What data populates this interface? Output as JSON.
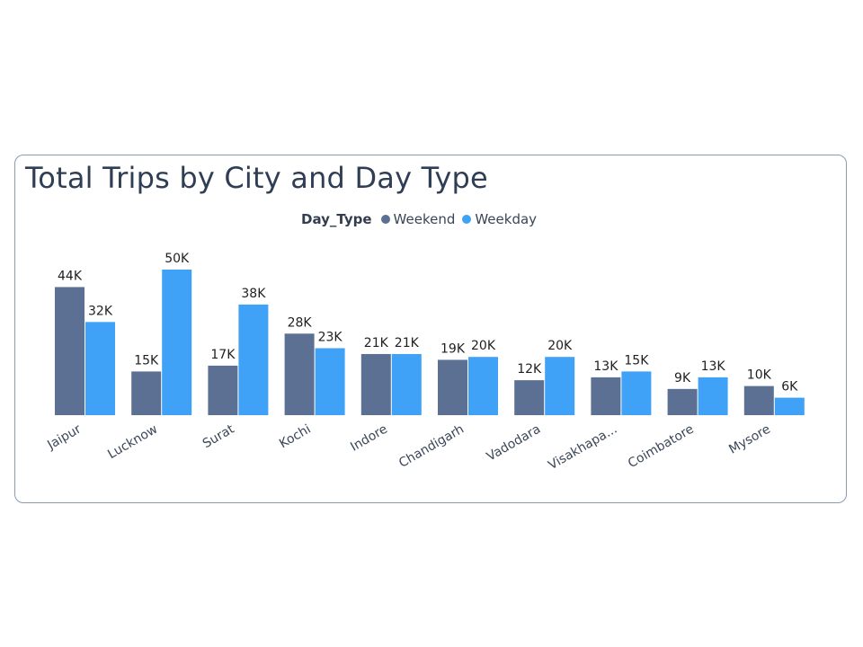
{
  "chart_data": {
    "type": "bar",
    "title": "Total Trips by City and Day Type",
    "legend_title": "Day_Type",
    "xlabel": "",
    "ylabel": "",
    "ylim": [
      0,
      52000
    ],
    "categories": [
      "Jaipur",
      "Lucknow",
      "Surat",
      "Kochi",
      "Indore",
      "Chandigarh",
      "Vadodara",
      "Visakhapa...",
      "Coimbatore",
      "Mysore"
    ],
    "series": [
      {
        "name": "Weekend",
        "color": "#5b7092",
        "values": [
          44000,
          15000,
          17000,
          28000,
          21000,
          19000,
          12000,
          13000,
          9000,
          10000
        ],
        "labels": [
          "44K",
          "15K",
          "17K",
          "28K",
          "21K",
          "19K",
          "12K",
          "13K",
          "9K",
          "10K"
        ]
      },
      {
        "name": "Weekday",
        "color": "#3fa2f7",
        "values": [
          32000,
          50000,
          38000,
          23000,
          21000,
          20000,
          20000,
          15000,
          13000,
          6000
        ],
        "labels": [
          "32K",
          "50K",
          "38K",
          "23K",
          "21K",
          "20K",
          "20K",
          "15K",
          "13K",
          "6K"
        ]
      }
    ]
  }
}
